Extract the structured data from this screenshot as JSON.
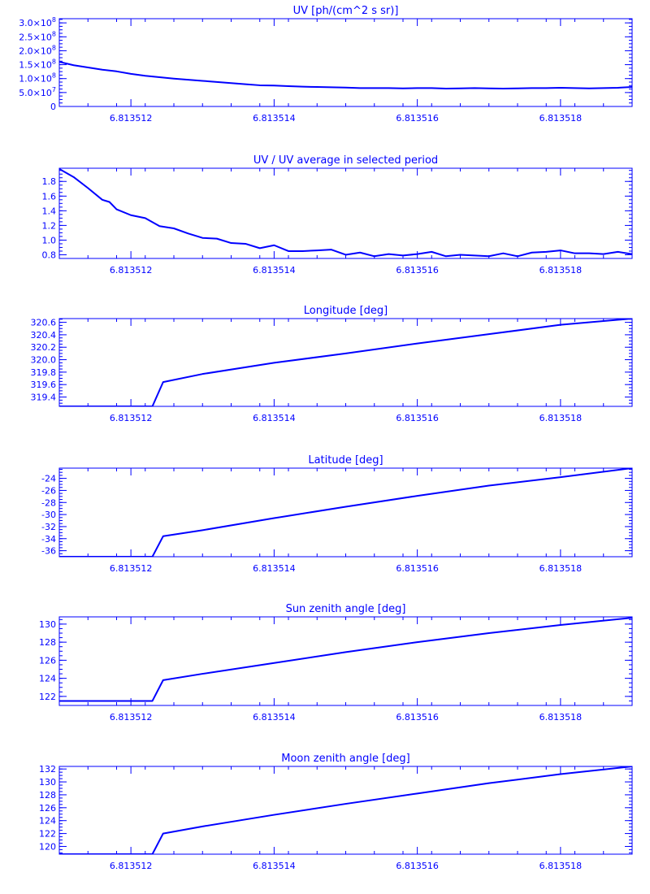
{
  "style": {
    "color": "#0000ff",
    "background": "#ffffff"
  },
  "chart_data": [
    {
      "type": "line",
      "title": "UV [ph/(cm^2 s sr)]",
      "xlim": [
        6.813511,
        6.813519
      ],
      "ylim": [
        0,
        315000000.0
      ],
      "xticks": [
        6.813512,
        6.813514,
        6.813516,
        6.813518
      ],
      "xtick_labels": [
        "6.813512",
        "6.813514",
        "6.813516",
        "6.813518"
      ],
      "yticks": [
        {
          "value": 0,
          "label": "0",
          "sup": ""
        },
        {
          "value": 50000000.0,
          "label": "5.0×10",
          "sup": "7"
        },
        {
          "value": 100000000.0,
          "label": "1.0×10",
          "sup": "8"
        },
        {
          "value": 150000000.0,
          "label": "1.5×10",
          "sup": "8"
        },
        {
          "value": 200000000.0,
          "label": "2.0×10",
          "sup": "8"
        },
        {
          "value": 250000000.0,
          "label": "2.5×10",
          "sup": "8"
        },
        {
          "value": 300000000.0,
          "label": "3.0×10",
          "sup": "8"
        }
      ],
      "x": [
        6.813511,
        6.8135112,
        6.8135114,
        6.8135116,
        6.8135118,
        6.813512,
        6.8135122,
        6.8135124,
        6.8135126,
        6.8135128,
        6.813513,
        6.8135132,
        6.8135134,
        6.8135136,
        6.8135138,
        6.813514,
        6.8135142,
        6.8135144,
        6.8135146,
        6.8135148,
        6.813515,
        6.8135152,
        6.8135154,
        6.8135156,
        6.8135158,
        6.813516,
        6.8135162,
        6.8135164,
        6.8135166,
        6.8135168,
        6.813517,
        6.8135172,
        6.8135174,
        6.8135176,
        6.8135178,
        6.813518,
        6.8135182,
        6.8135184,
        6.8135186,
        6.8135188,
        6.813519
      ],
      "y": [
        160000000.0,
        148000000.0,
        140000000.0,
        132000000.0,
        126000000.0,
        117000000.0,
        110000000.0,
        105000000.0,
        100000000.0,
        96000000.0,
        92000000.0,
        88000000.0,
        84000000.0,
        80000000.0,
        76000000.0,
        75000000.0,
        73000000.0,
        71000000.0,
        70000000.0,
        69000000.0,
        68000000.0,
        66000000.0,
        66000000.0,
        66000000.0,
        65000000.0,
        66000000.0,
        66000000.0,
        64000000.0,
        65000000.0,
        66000000.0,
        65000000.0,
        64000000.0,
        65000000.0,
        66000000.0,
        66000000.0,
        67000000.0,
        66000000.0,
        65000000.0,
        66000000.0,
        67000000.0,
        70000000.0
      ]
    },
    {
      "type": "line",
      "title": "UV / UV average in selected period",
      "xlim": [
        6.813511,
        6.813519
      ],
      "ylim": [
        0.75,
        1.98
      ],
      "xticks": [
        6.813512,
        6.813514,
        6.813516,
        6.813518
      ],
      "xtick_labels": [
        "6.813512",
        "6.813514",
        "6.813516",
        "6.813518"
      ],
      "yticks": [
        {
          "value": 0.8,
          "label": "0.8",
          "sup": ""
        },
        {
          "value": 1.0,
          "label": "1.0",
          "sup": ""
        },
        {
          "value": 1.2,
          "label": "1.2",
          "sup": ""
        },
        {
          "value": 1.4,
          "label": "1.4",
          "sup": ""
        },
        {
          "value": 1.6,
          "label": "1.6",
          "sup": ""
        },
        {
          "value": 1.8,
          "label": "1.8",
          "sup": ""
        }
      ],
      "x": [
        6.813511,
        6.8135112,
        6.8135114,
        6.8135116,
        6.8135117,
        6.8135118,
        6.813512,
        6.8135122,
        6.8135124,
        6.8135126,
        6.8135128,
        6.813513,
        6.8135132,
        6.8135134,
        6.8135136,
        6.8135138,
        6.813514,
        6.8135142,
        6.8135144,
        6.8135146,
        6.8135148,
        6.813515,
        6.8135152,
        6.8135154,
        6.8135156,
        6.8135158,
        6.813516,
        6.8135162,
        6.8135164,
        6.8135166,
        6.8135168,
        6.813517,
        6.8135172,
        6.8135174,
        6.8135176,
        6.8135178,
        6.813518,
        6.8135182,
        6.8135184,
        6.8135186,
        6.8135188,
        6.813519
      ],
      "y": [
        1.97,
        1.86,
        1.71,
        1.55,
        1.52,
        1.42,
        1.34,
        1.3,
        1.19,
        1.16,
        1.09,
        1.03,
        1.02,
        0.96,
        0.95,
        0.89,
        0.93,
        0.85,
        0.85,
        0.86,
        0.87,
        0.8,
        0.83,
        0.78,
        0.81,
        0.79,
        0.81,
        0.84,
        0.78,
        0.8,
        0.79,
        0.78,
        0.82,
        0.78,
        0.83,
        0.84,
        0.86,
        0.82,
        0.82,
        0.81,
        0.84,
        0.81
      ]
    },
    {
      "type": "line",
      "title": "Longitude [deg]",
      "xlim": [
        6.813511,
        6.813519
      ],
      "ylim": [
        319.25,
        320.66
      ],
      "xticks": [
        6.813512,
        6.813514,
        6.813516,
        6.813518
      ],
      "xtick_labels": [
        "6.813512",
        "6.813514",
        "6.813516",
        "6.813518"
      ],
      "yticks": [
        {
          "value": 319.4,
          "label": "319.4",
          "sup": ""
        },
        {
          "value": 319.6,
          "label": "319.6",
          "sup": ""
        },
        {
          "value": 319.8,
          "label": "319.8",
          "sup": ""
        },
        {
          "value": 320.0,
          "label": "320.0",
          "sup": ""
        },
        {
          "value": 320.2,
          "label": "320.2",
          "sup": ""
        },
        {
          "value": 320.4,
          "label": "320.4",
          "sup": ""
        },
        {
          "value": 320.6,
          "label": "320.6",
          "sup": ""
        }
      ],
      "x": [
        6.813511,
        6.8135123,
        6.81351245,
        6.813513,
        6.813514,
        6.813515,
        6.813516,
        6.813517,
        6.813518,
        6.813519
      ],
      "y": [
        319.25,
        319.25,
        319.64,
        319.77,
        319.95,
        320.1,
        320.26,
        320.41,
        320.56,
        320.66
      ]
    },
    {
      "type": "line",
      "title": "Latitude [deg]",
      "xlim": [
        6.813511,
        6.813519
      ],
      "ylim": [
        -37.0,
        -22.3
      ],
      "xticks": [
        6.813512,
        6.813514,
        6.813516,
        6.813518
      ],
      "xtick_labels": [
        "6.813512",
        "6.813514",
        "6.813516",
        "6.813518"
      ],
      "yticks": [
        {
          "value": -36,
          "label": "-36",
          "sup": ""
        },
        {
          "value": -34,
          "label": "-34",
          "sup": ""
        },
        {
          "value": -32,
          "label": "-32",
          "sup": ""
        },
        {
          "value": -30,
          "label": "-30",
          "sup": ""
        },
        {
          "value": -28,
          "label": "-28",
          "sup": ""
        },
        {
          "value": -26,
          "label": "-26",
          "sup": ""
        },
        {
          "value": -24,
          "label": "-24",
          "sup": ""
        }
      ],
      "x": [
        6.813511,
        6.8135123,
        6.81351245,
        6.813513,
        6.813514,
        6.813515,
        6.813516,
        6.813517,
        6.813518,
        6.813519
      ],
      "y": [
        -37.0,
        -37.0,
        -33.6,
        -32.6,
        -30.6,
        -28.7,
        -26.9,
        -25.2,
        -23.8,
        -22.3
      ]
    },
    {
      "type": "line",
      "title": "Sun zenith angle [deg]",
      "xlim": [
        6.813511,
        6.813519
      ],
      "ylim": [
        121.0,
        130.8
      ],
      "xticks": [
        6.813512,
        6.813514,
        6.813516,
        6.813518
      ],
      "xtick_labels": [
        "6.813512",
        "6.813514",
        "6.813516",
        "6.813518"
      ],
      "yticks": [
        {
          "value": 122,
          "label": "122",
          "sup": ""
        },
        {
          "value": 124,
          "label": "124",
          "sup": ""
        },
        {
          "value": 126,
          "label": "126",
          "sup": ""
        },
        {
          "value": 128,
          "label": "128",
          "sup": ""
        },
        {
          "value": 130,
          "label": "130",
          "sup": ""
        }
      ],
      "x": [
        6.813511,
        6.8135123,
        6.81351245,
        6.813513,
        6.813514,
        6.813515,
        6.813516,
        6.813517,
        6.813518,
        6.813519
      ],
      "y": [
        121.5,
        121.5,
        123.8,
        124.5,
        125.7,
        126.9,
        128.0,
        129.0,
        129.9,
        130.7
      ]
    },
    {
      "type": "line",
      "title": "Moon zenith angle [deg]",
      "xlim": [
        6.813511,
        6.813519
      ],
      "ylim": [
        118.8,
        132.4
      ],
      "xticks": [
        6.813512,
        6.813514,
        6.813516,
        6.813518
      ],
      "xtick_labels": [
        "6.813512",
        "6.813514",
        "6.813516",
        "6.813518"
      ],
      "yticks": [
        {
          "value": 120,
          "label": "120",
          "sup": ""
        },
        {
          "value": 122,
          "label": "122",
          "sup": ""
        },
        {
          "value": 124,
          "label": "124",
          "sup": ""
        },
        {
          "value": 126,
          "label": "126",
          "sup": ""
        },
        {
          "value": 128,
          "label": "128",
          "sup": ""
        },
        {
          "value": 130,
          "label": "130",
          "sup": ""
        },
        {
          "value": 132,
          "label": "132",
          "sup": ""
        }
      ],
      "x": [
        6.813511,
        6.8135123,
        6.81351245,
        6.813513,
        6.813514,
        6.813515,
        6.813516,
        6.813517,
        6.813518,
        6.813519
      ],
      "y": [
        118.8,
        118.8,
        122.0,
        123.1,
        124.9,
        126.6,
        128.2,
        129.8,
        131.2,
        132.4
      ]
    }
  ]
}
